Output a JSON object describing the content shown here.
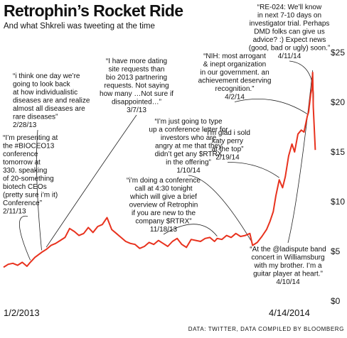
{
  "title": "Retrophin’s Rocket Ride",
  "subtitle": "And what Shkreli was tweeting at the time",
  "source": "DATA: TWITTER, DATA COMPILED BY BLOOMBERG",
  "colors": {
    "line": "#e8321e",
    "text": "#111111"
  },
  "chart_data": {
    "type": "line",
    "title": "Retrophin’s Rocket Ride",
    "subtitle": "And what Shkreli was tweeting at the time",
    "xlabel": "",
    "ylabel": "",
    "x_tick_labels": [
      "1/2/2013",
      "4/14/2014"
    ],
    "y_ticks": [
      0,
      5,
      10,
      15,
      20,
      25
    ],
    "y_tick_labels": [
      "$0",
      "$5",
      "$10",
      "$15",
      "$20",
      "$25"
    ],
    "ylim": [
      0,
      25
    ],
    "xlim": [
      "2013-01-02",
      "2014-04-21"
    ],
    "grid": false,
    "series": [
      {
        "name": "",
        "x": [
          "2013-01-02",
          "2013-01-09",
          "2013-01-16",
          "2013-01-23",
          "2013-01-30",
          "2013-02-06",
          "2013-02-11",
          "2013-02-18",
          "2013-02-28",
          "2013-03-07",
          "2013-03-14",
          "2013-03-21",
          "2013-03-28",
          "2013-04-04",
          "2013-04-11",
          "2013-04-18",
          "2013-04-25",
          "2013-05-02",
          "2013-05-09",
          "2013-05-16",
          "2013-05-23",
          "2013-05-30",
          "2013-06-06",
          "2013-06-13",
          "2013-06-20",
          "2013-06-27",
          "2013-07-04",
          "2013-07-11",
          "2013-07-18",
          "2013-07-25",
          "2013-08-01",
          "2013-08-08",
          "2013-08-15",
          "2013-08-22",
          "2013-08-29",
          "2013-09-05",
          "2013-09-12",
          "2013-09-19",
          "2013-09-26",
          "2013-10-03",
          "2013-10-10",
          "2013-10-17",
          "2013-10-24",
          "2013-10-31",
          "2013-11-07",
          "2013-11-14",
          "2013-11-18",
          "2013-11-25",
          "2013-12-02",
          "2013-12-09",
          "2013-12-16",
          "2013-12-23",
          "2013-12-30",
          "2014-01-06",
          "2014-01-10",
          "2014-01-17",
          "2014-01-24",
          "2014-01-31",
          "2014-02-05",
          "2014-02-10",
          "2014-02-14",
          "2014-02-19",
          "2014-02-24",
          "2014-02-28",
          "2014-03-05",
          "2014-03-10",
          "2014-03-14",
          "2014-03-19",
          "2014-03-24",
          "2014-03-28",
          "2014-04-02",
          "2014-04-04",
          "2014-04-07",
          "2014-04-09",
          "2014-04-10",
          "2014-04-11",
          "2014-04-14"
        ],
        "y": [
          3.4,
          3.7,
          3.8,
          3.6,
          3.9,
          3.5,
          3.9,
          4.4,
          4.9,
          5.2,
          5.6,
          5.8,
          6.1,
          6.4,
          7.3,
          7.0,
          6.6,
          6.8,
          7.4,
          6.9,
          7.5,
          7.7,
          8.4,
          7.2,
          6.8,
          6.4,
          6.0,
          5.8,
          5.7,
          5.3,
          5.5,
          5.9,
          5.7,
          6.1,
          5.8,
          5.5,
          6.0,
          6.3,
          5.7,
          5.4,
          6.2,
          6.1,
          6.0,
          6.3,
          6.4,
          6.0,
          6.3,
          6.2,
          6.6,
          6.4,
          6.8,
          6.5,
          6.6,
          6.8,
          5.6,
          5.9,
          6.5,
          7.2,
          8.0,
          9.0,
          10.6,
          12.2,
          11.4,
          12.5,
          14.6,
          15.8,
          15.0,
          16.8,
          17.2,
          17.0,
          18.6,
          19.0,
          20.8,
          21.4,
          23.0,
          19.5,
          15.2
        ]
      }
    ],
    "annotations": [
      {
        "date": "2013-02-11",
        "text": "“I’m presenting at the #BIOCEO13 conference tomorrow at 330. speaking of 20-something biotech CEOs (pretty sure i’m it) Conference”",
        "label_date": "2/11/13"
      },
      {
        "date": "2013-02-28",
        "text": "“i think one day we’re going to look back at how individualistic diseases are and realize almost all diseases are rare diseases”",
        "label_date": "2/28/13"
      },
      {
        "date": "2013-03-07",
        "text": "“I have more dating site requests than bio 2013 partnering requests. Not saying how many …Not sure if disappointed…”",
        "label_date": "3/7/13"
      },
      {
        "date": "2013-11-18",
        "text": "“i’m doing a conference call at 4:30 tonight which will give a brief overview of Retrophin if you are new to the company $RTRX”",
        "label_date": "11/18/13"
      },
      {
        "date": "2014-01-10",
        "text": "“I’m just going to type up a conference letter for investors who are angry at me that they didn’t get any $RTRX in the offering”",
        "label_date": "1/10/14"
      },
      {
        "date": "2014-02-19",
        "text": "“i’m glad i sold katy perry at the top”",
        "label_date": "2/19/14"
      },
      {
        "date": "2014-04-02",
        "text": "“NIH: most arrogant & inept organization in our government. an achievement deserving recognition.”",
        "label_date": "4/2/14"
      },
      {
        "date": "2014-04-10",
        "text": "“At the @ladispute band concert in Williamsburg with my brother. I’m a guitar player at heart.”",
        "label_date": "4/10/14"
      },
      {
        "date": "2014-04-11",
        "text": "“RE-024: We’ll know in next 7-10 days on investigator trial. Perhaps DMD folks can give us advice? :) Expect news (good, bad or ugly) soon.”",
        "label_date": "4/11/14"
      }
    ]
  },
  "notes": [
    {
      "lines": [
        "“I’m presenting at",
        "the #BIOCEO13",
        "conference",
        "tomorrow at",
        "330. speaking",
        "of 20-something",
        "biotech CEOs",
        "(pretty sure i’m it)",
        "Conference”"
      ],
      "date": "2/11/13"
    },
    {
      "lines": [
        "“i think one day we’re",
        "going to look back",
        "at how individualistic",
        "diseases are and realize",
        "almost all diseases are",
        "rare diseases”"
      ],
      "date": "2/28/13"
    },
    {
      "lines": [
        "“I have more dating",
        "site requests than",
        "bio 2013 partnering",
        "requests. Not saying",
        "how many …Not sure if",
        "disappointed…”"
      ],
      "date": "3/7/13"
    },
    {
      "lines": [
        "“i’m doing a conference",
        "call at 4:30 tonight",
        "which will give a brief",
        "overview of Retrophin",
        "if you are new to the",
        "company $RTRX”"
      ],
      "date": "11/18/13"
    },
    {
      "lines": [
        "“I’m just going to type",
        "up a conference letter for",
        "investors who are",
        "angry at me that they",
        "didn’t get any $RTRX",
        "in the offering”"
      ],
      "date": "1/10/14"
    },
    {
      "lines": [
        "“i’m glad i sold",
        "katy perry",
        "at the top”"
      ],
      "date": "2/19/14"
    },
    {
      "lines": [
        "“NIH: most arrogant",
        "& inept organization",
        "in our government. an",
        "achievement deserving",
        "recognition.”"
      ],
      "date": "4/2/14"
    },
    {
      "lines": [
        "“At the @ladispute band",
        "concert in Williamsburg",
        "with my brother. I’m a",
        "guitar player at heart.”"
      ],
      "date": "4/10/14"
    },
    {
      "lines": [
        "“RE-024: We’ll know",
        "in next 7-10 days on",
        "investigator trial. Perhaps",
        "DMD folks can give us",
        "advice? :) Expect news",
        "(good, bad or ugly) soon.”"
      ],
      "date": "4/11/14"
    }
  ]
}
